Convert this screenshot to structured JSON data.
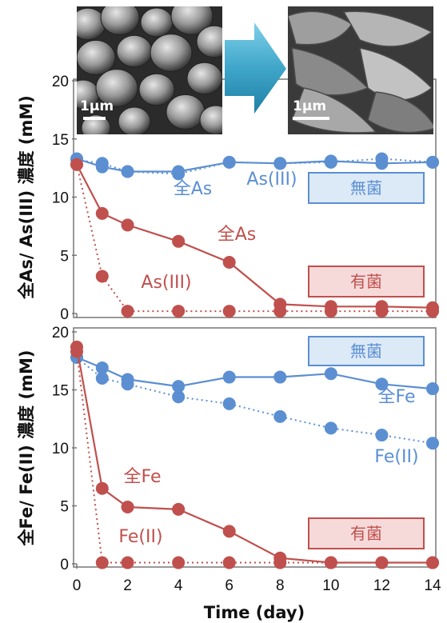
{
  "colors": {
    "sterile": "#5B8FD2",
    "bacteria": "#C0504D",
    "sterile_fill": "#DCE9F7",
    "bacteria_fill": "#F6DADA",
    "arrow": "#3FA6C9"
  },
  "x_axis": {
    "label": "Time (day)",
    "ticks": [
      0,
      2,
      4,
      6,
      8,
      10,
      12,
      14
    ],
    "range": [
      0,
      14
    ]
  },
  "images": [
    {
      "name": "sem-before",
      "scale_label": "1μm"
    },
    {
      "name": "sem-after",
      "scale_label": "1μm"
    }
  ],
  "chart_data": [
    {
      "type": "line",
      "ylabel": "全As/ As(III) 濃度 (mM)",
      "ylim": [
        0,
        20
      ],
      "yticks": [
        0,
        5,
        10,
        15,
        20
      ],
      "legend": [
        {
          "label": "無菌",
          "color": "#5B8FD2"
        },
        {
          "label": "有菌",
          "color": "#C0504D"
        }
      ],
      "series": [
        {
          "name": "全As",
          "group": "無菌",
          "style": "solid",
          "color": "#5B8FD2",
          "x": [
            0,
            1,
            2,
            4,
            6,
            8,
            10,
            12,
            14
          ],
          "y": [
            13.3,
            12.6,
            12.2,
            12.2,
            13.0,
            12.9,
            13.1,
            12.9,
            13.0
          ]
        },
        {
          "name": "As(III)",
          "group": "無菌",
          "style": "dotted",
          "color": "#5B8FD2",
          "x": [
            0,
            1,
            2,
            4,
            6,
            8,
            10,
            12,
            14
          ],
          "y": [
            13.2,
            12.9,
            12.2,
            12.0,
            13.0,
            12.9,
            13.0,
            13.3,
            13.0
          ]
        },
        {
          "name": "全As",
          "group": "有菌",
          "style": "solid",
          "color": "#C0504D",
          "x": [
            0,
            1,
            2,
            4,
            6,
            8,
            10,
            12,
            14
          ],
          "y": [
            12.8,
            8.6,
            7.6,
            6.2,
            4.4,
            0.8,
            0.6,
            0.6,
            0.5
          ]
        },
        {
          "name": "As(III)",
          "group": "有菌",
          "style": "dotted",
          "color": "#C0504D",
          "x": [
            0,
            1,
            2,
            4,
            6,
            8,
            10,
            12,
            14
          ],
          "y": [
            12.8,
            3.2,
            0.2,
            0.2,
            0.2,
            0.2,
            0.2,
            0.2,
            0.2
          ]
        }
      ],
      "annotations": [
        "全As",
        "As(III)",
        "全As",
        "As(III)"
      ]
    },
    {
      "type": "line",
      "ylabel": "全Fe/ Fe(II) 濃度 (mM)",
      "ylim": [
        0,
        20
      ],
      "yticks": [
        0,
        5,
        10,
        15,
        20
      ],
      "legend": [
        {
          "label": "無菌",
          "color": "#5B8FD2"
        },
        {
          "label": "有菌",
          "color": "#C0504D"
        }
      ],
      "series": [
        {
          "name": "全Fe",
          "group": "無菌",
          "style": "solid",
          "color": "#5B8FD2",
          "x": [
            0,
            1,
            2,
            4,
            6,
            8,
            10,
            12,
            14
          ],
          "y": [
            17.8,
            16.9,
            15.9,
            15.3,
            16.1,
            16.1,
            16.4,
            15.5,
            15.1
          ]
        },
        {
          "name": "Fe(II)",
          "group": "無菌",
          "style": "dotted",
          "color": "#5B8FD2",
          "x": [
            0,
            1,
            2,
            4,
            6,
            8,
            10,
            12,
            14
          ],
          "y": [
            17.8,
            16.0,
            15.5,
            14.4,
            13.8,
            12.7,
            11.7,
            11.1,
            10.4
          ]
        },
        {
          "name": "全Fe",
          "group": "有菌",
          "style": "solid",
          "color": "#C0504D",
          "x": [
            0,
            1,
            2,
            4,
            6,
            8,
            10,
            12,
            14
          ],
          "y": [
            18.7,
            6.5,
            4.9,
            4.7,
            2.8,
            0.5,
            0.1,
            0.1,
            0.1
          ]
        },
        {
          "name": "Fe(II)",
          "group": "有菌",
          "style": "dotted",
          "color": "#C0504D",
          "x": [
            0,
            1,
            2,
            4,
            6,
            8,
            10,
            12,
            14
          ],
          "y": [
            18.3,
            0.1,
            0.1,
            0.1,
            0.1,
            0.1,
            0.1,
            0.1,
            0.1
          ]
        }
      ],
      "annotations": [
        "全Fe",
        "Fe(II)",
        "全Fe",
        "Fe(II)"
      ]
    }
  ]
}
